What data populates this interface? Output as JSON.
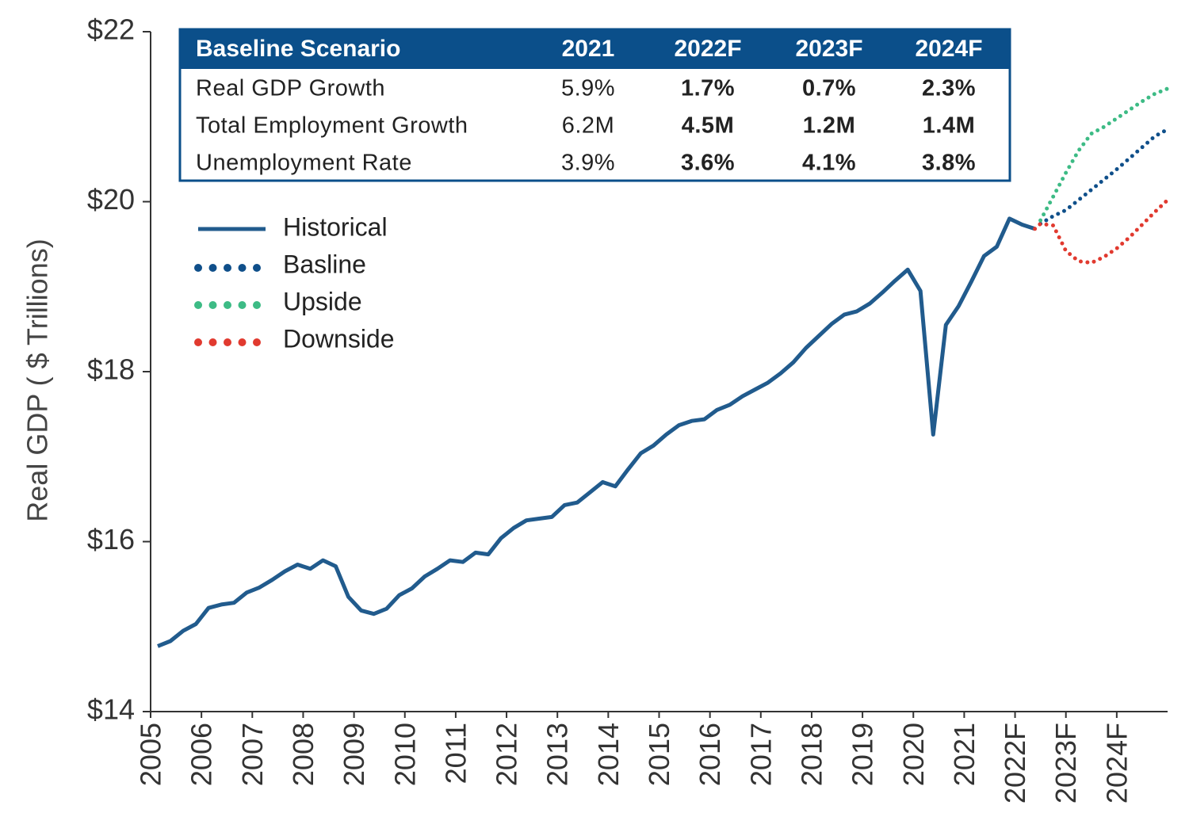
{
  "chart_data": {
    "type": "line",
    "ylabel": "Real GDP ( $ Trillions)",
    "xlim": [
      2005,
      2025
    ],
    "xticks": [
      2005,
      2006,
      2007,
      2008,
      2009,
      2010,
      2011,
      2012,
      2013,
      2014,
      2015,
      2016,
      2017,
      2018,
      2019,
      2020,
      2021,
      {
        "value": 2022,
        "label": "2022F"
      },
      {
        "value": 2023,
        "label": "2023F"
      },
      {
        "value": 2024,
        "label": "2024F"
      }
    ],
    "ylim": [
      14,
      22
    ],
    "yticks": [
      {
        "value": 14,
        "label": "$14"
      },
      {
        "value": 16,
        "label": "$16"
      },
      {
        "value": 18,
        "label": "$18"
      },
      {
        "value": 20,
        "label": "$20"
      },
      {
        "value": 22,
        "label": "$22"
      }
    ],
    "series": [
      {
        "name": "Historical",
        "color": "#215b8d",
        "style": "solid",
        "x": [
          2005.14,
          2005.39,
          2005.64,
          2005.89,
          2006.14,
          2006.39,
          2006.64,
          2006.89,
          2007.14,
          2007.39,
          2007.64,
          2007.89,
          2008.14,
          2008.39,
          2008.64,
          2008.89,
          2009.14,
          2009.39,
          2009.64,
          2009.89,
          2010.14,
          2010.39,
          2010.64,
          2010.89,
          2011.14,
          2011.39,
          2011.64,
          2011.89,
          2012.14,
          2012.39,
          2012.64,
          2012.89,
          2013.14,
          2013.39,
          2013.64,
          2013.89,
          2014.14,
          2014.39,
          2014.64,
          2014.89,
          2015.14,
          2015.39,
          2015.64,
          2015.89,
          2016.14,
          2016.39,
          2016.64,
          2016.89,
          2017.14,
          2017.39,
          2017.64,
          2017.89,
          2018.14,
          2018.39,
          2018.64,
          2018.89,
          2019.14,
          2019.39,
          2019.64,
          2019.89,
          2020.14,
          2020.39,
          2020.64,
          2020.89,
          2021.14,
          2021.39,
          2021.64,
          2021.89,
          2022.14,
          2022.39
        ],
        "values": [
          14.77,
          14.83,
          14.95,
          15.03,
          15.22,
          15.26,
          15.28,
          15.4,
          15.46,
          15.55,
          15.65,
          15.73,
          15.68,
          15.78,
          15.71,
          15.35,
          15.19,
          15.15,
          15.21,
          15.37,
          15.45,
          15.59,
          15.68,
          15.78,
          15.76,
          15.87,
          15.85,
          16.04,
          16.16,
          16.25,
          16.27,
          16.29,
          16.43,
          16.46,
          16.58,
          16.7,
          16.65,
          16.85,
          17.04,
          17.13,
          17.26,
          17.37,
          17.42,
          17.44,
          17.55,
          17.61,
          17.71,
          17.79,
          17.87,
          17.98,
          18.11,
          18.28,
          18.42,
          18.56,
          18.67,
          18.71,
          18.8,
          18.93,
          19.07,
          19.2,
          18.95,
          17.26,
          18.55,
          18.77,
          19.06,
          19.36,
          19.47,
          19.8,
          19.73,
          19.68
        ]
      },
      {
        "name": "Basline",
        "color": "#0f4f8a",
        "style": "dotted",
        "x": [
          2022.5,
          2022.75,
          2023.0,
          2023.25,
          2023.5,
          2023.75,
          2024.0,
          2024.25,
          2024.5,
          2024.75,
          2025.0
        ],
        "values": [
          19.74,
          19.83,
          19.9,
          20.02,
          20.14,
          20.26,
          20.38,
          20.51,
          20.64,
          20.77,
          20.85
        ]
      },
      {
        "name": "Upside",
        "color": "#3dbb85",
        "style": "dotted",
        "x": [
          2022.5,
          2022.75,
          2023.0,
          2023.25,
          2023.5,
          2023.75,
          2024.0,
          2024.25,
          2024.5,
          2024.75,
          2025.0
        ],
        "values": [
          19.78,
          20.06,
          20.34,
          20.6,
          20.8,
          20.88,
          20.98,
          21.08,
          21.18,
          21.27,
          21.33
        ]
      },
      {
        "name": "Downside",
        "color": "#e13a2f",
        "style": "dotted",
        "x": [
          2022.39,
          2022.5,
          2022.75,
          2023.0,
          2023.25,
          2023.5,
          2023.75,
          2024.0,
          2024.25,
          2024.5,
          2024.75,
          2025.0
        ],
        "values": [
          19.68,
          19.74,
          19.72,
          19.42,
          19.3,
          19.28,
          19.35,
          19.45,
          19.58,
          19.73,
          19.88,
          20.02
        ]
      }
    ]
  },
  "table": {
    "header": [
      "Baseline Scenario",
      "2021",
      "2022F",
      "2023F",
      "2024F"
    ],
    "rows": [
      [
        "Real GDP Growth",
        "5.9%",
        "1.7%",
        "0.7%",
        "2.3%"
      ],
      [
        "Total Employment Growth",
        "6.2M",
        "4.5M",
        "1.2M",
        "1.4M"
      ],
      [
        "Unemployment Rate",
        "3.9%",
        "3.6%",
        "4.1%",
        "3.8%"
      ]
    ]
  }
}
